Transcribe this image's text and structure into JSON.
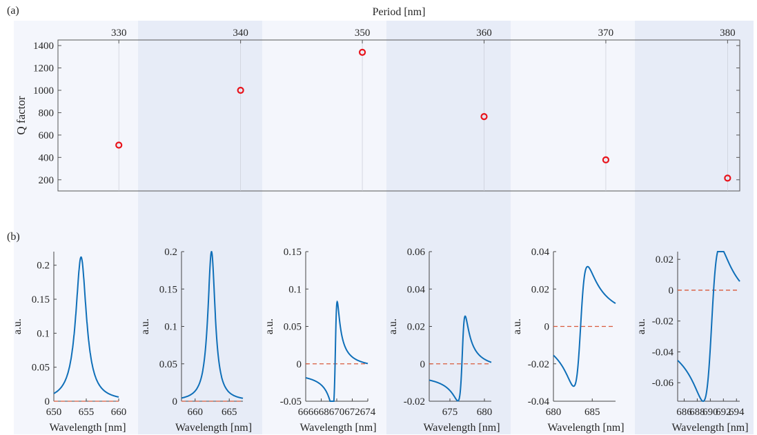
{
  "panel_labels": {
    "a": "(a)",
    "b": "(b)"
  },
  "colors": {
    "band_light": "#f4f6fc",
    "band_dark": "#e7ecf7",
    "marker": "#e8141c",
    "curve": "#0f6fb8",
    "zero_line": "#d95a3a",
    "axis": "#262626"
  },
  "chart_data": [
    {
      "type": "scatter",
      "title": "",
      "xlabel": "Period [nm]",
      "ylabel": "Q factor",
      "xaxis_location": "top",
      "xlim": [
        325,
        381
      ],
      "ylim": [
        100,
        1450
      ],
      "xticks": [
        330,
        340,
        350,
        360,
        370,
        380
      ],
      "yticks": [
        200,
        400,
        600,
        800,
        1000,
        1200,
        1400
      ],
      "series": [
        {
          "x": [
            330,
            340,
            350,
            360,
            370,
            380
          ],
          "y": [
            510,
            1000,
            1340,
            765,
            378,
            215
          ]
        }
      ]
    },
    {
      "type": "line",
      "xlabel": "Wavelength  [nm]",
      "ylabel": "a.u.",
      "xlim": [
        650,
        660
      ],
      "ylim": [
        0,
        0.22
      ],
      "xticks": [
        650,
        655,
        660
      ],
      "yticks": [
        0,
        0.05,
        0.1,
        0.15,
        0.2
      ],
      "ytick_labels": [
        "0",
        "0.05",
        "0.1",
        "0.15",
        "0.2"
      ],
      "curve": {
        "center": 654.2,
        "width": 1.0,
        "amplitude": 0.212,
        "asymmetry": 0,
        "offset": 0
      },
      "zero_line": true
    },
    {
      "type": "line",
      "xlabel": "Wavelength  [nm]",
      "ylabel": "a.u.",
      "xlim": [
        658,
        667
      ],
      "ylim": [
        0,
        0.2
      ],
      "xticks": [
        660,
        665
      ],
      "yticks": [
        0,
        0.05,
        0.1,
        0.15,
        0.2
      ],
      "ytick_labels": [
        "0",
        "0.05",
        "0.1",
        "0.15",
        "0.2"
      ],
      "curve": {
        "center": 662.4,
        "width": 0.65,
        "amplitude": 0.2,
        "asymmetry": 0,
        "offset": 0
      },
      "zero_line": true
    },
    {
      "type": "line",
      "xlabel": "Wavelength  [nm]",
      "ylabel": "a.u.",
      "xlim": [
        666,
        674
      ],
      "ylim": [
        -0.05,
        0.15
      ],
      "xticks": [
        666,
        668,
        670,
        672,
        674
      ],
      "yticks": [
        -0.05,
        0,
        0.05,
        0.1,
        0.15
      ],
      "ytick_labels": [
        "-0.05",
        "0",
        "0.05",
        "0.1",
        "0.15"
      ],
      "curve": {
        "center": 669.85,
        "width": 0.28,
        "amplitude": 0.092,
        "asymmetry": 1.35,
        "offset": -0.009
      },
      "zero_line": true
    },
    {
      "type": "line",
      "xlabel": "Wavelength  [nm]",
      "ylabel": "a.u.",
      "xlim": [
        672,
        681
      ],
      "ylim": [
        -0.02,
        0.06
      ],
      "xticks": [
        675,
        680
      ],
      "yticks": [
        -0.02,
        0,
        0.02,
        0.04,
        0.06
      ],
      "ytick_labels": [
        "-0.02",
        "0",
        "0.02",
        "0.04",
        "0.06"
      ],
      "curve": {
        "center": 676.85,
        "width": 0.5,
        "amplitude": 0.03,
        "asymmetry": 1.4,
        "offset": -0.0045
      },
      "zero_line": true
    },
    {
      "type": "line",
      "xlabel": "Wavelength  [nm]",
      "ylabel": "a.u.",
      "xlim": [
        680,
        688
      ],
      "ylim": [
        -0.04,
        0.04
      ],
      "xticks": [
        680,
        685
      ],
      "yticks": [
        -0.04,
        -0.02,
        0,
        0.02,
        0.04
      ],
      "ytick_labels": [
        "-0.04",
        "-0.02",
        "0",
        "0.02",
        "0.04"
      ],
      "curve": {
        "center": 683.5,
        "width": 0.9,
        "amplitude": 0.032,
        "asymmetry": 1.0,
        "offset": 0.0
      },
      "zero_line": true
    },
    {
      "type": "line",
      "xlabel": "Wavelength  [nm]",
      "ylabel": "a.u.",
      "xlim": [
        685,
        694.5
      ],
      "ylim": [
        -0.072,
        0.025
      ],
      "xticks": [
        686,
        688,
        690,
        692,
        694
      ],
      "yticks": [
        -0.06,
        -0.04,
        -0.02,
        0,
        0.02
      ],
      "ytick_labels": [
        "-0.06",
        "-0.04",
        "-0.02",
        "0",
        "0.02"
      ],
      "curve": {
        "center": 690.2,
        "width": 1.3,
        "amplitude": 0.05,
        "asymmetry": 1.0,
        "offset": -0.022
      },
      "zero_line": true
    }
  ]
}
